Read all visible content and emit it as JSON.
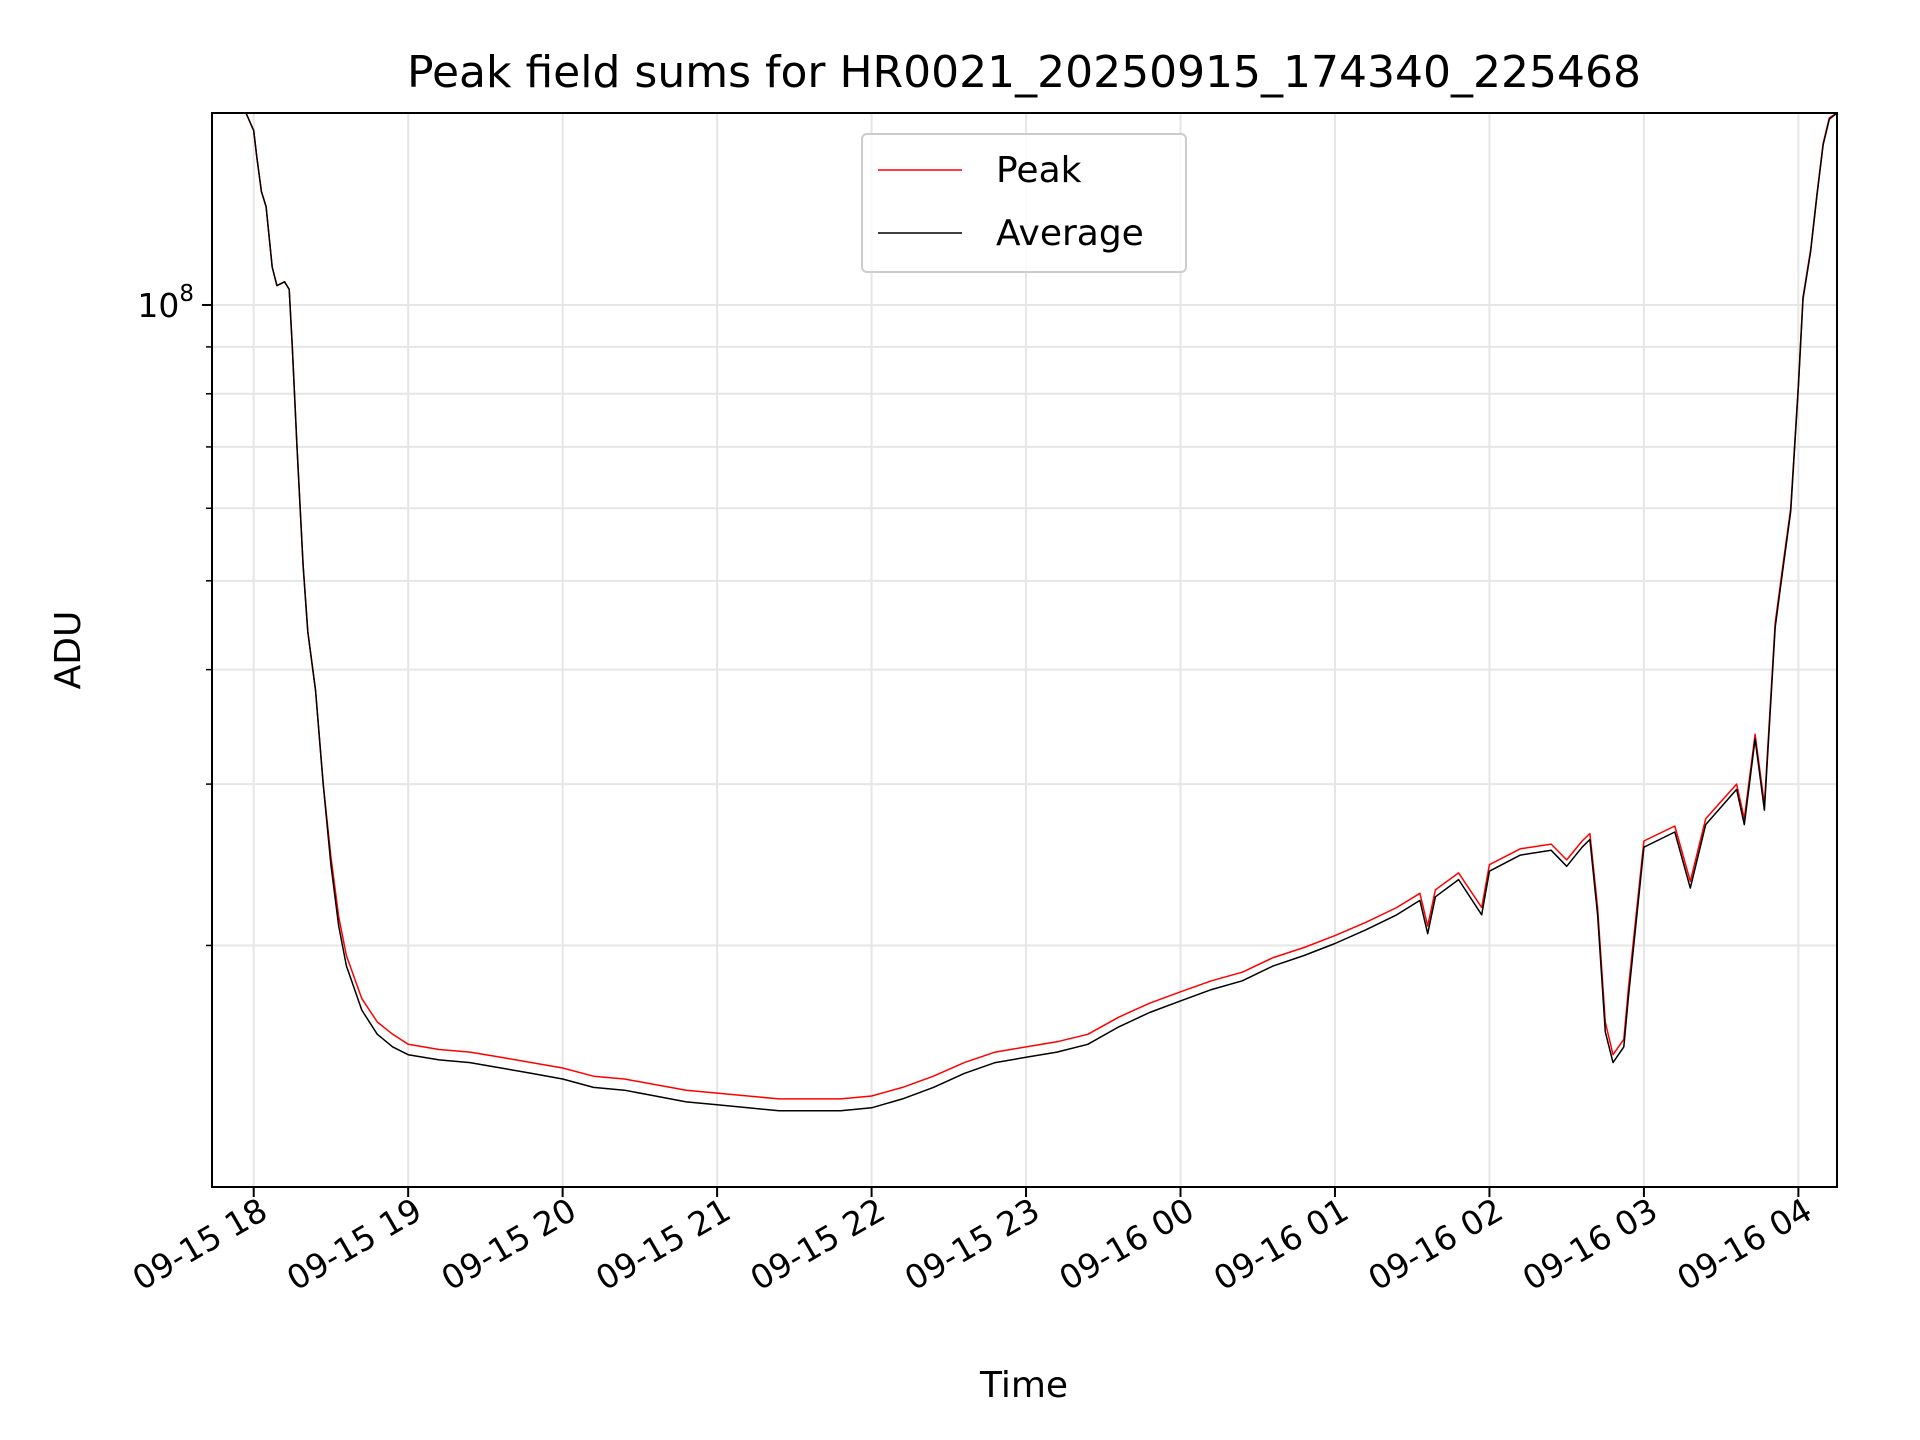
{
  "chart_data": {
    "type": "line",
    "title": "Peak field sums for HR0021_20250915_174340_225468",
    "xlabel": "Time",
    "ylabel": "ADU",
    "yscale": "log",
    "ylim": [
      10900000,
      162000000
    ],
    "xlim_hours": [
      -0.27,
      10.25
    ],
    "x_ticks": [
      {
        "label": "09-15 18",
        "hour": 0
      },
      {
        "label": "09-15 19",
        "hour": 1
      },
      {
        "label": "09-15 20",
        "hour": 2
      },
      {
        "label": "09-15 21",
        "hour": 3
      },
      {
        "label": "09-15 22",
        "hour": 4
      },
      {
        "label": "09-15 23",
        "hour": 5
      },
      {
        "label": "09-16 00",
        "hour": 6
      },
      {
        "label": "09-16 01",
        "hour": 7
      },
      {
        "label": "09-16 02",
        "hour": 8
      },
      {
        "label": "09-16 03",
        "hour": 9
      },
      {
        "label": "09-16 04",
        "hour": 10
      }
    ],
    "y_ticks": [
      {
        "label_base": "10",
        "label_exp": "8",
        "value": 100000000
      }
    ],
    "y_minor_ticks": [
      20000000,
      30000000,
      40000000,
      50000000,
      60000000,
      70000000,
      80000000,
      90000000,
      200000000
    ],
    "grid": true,
    "legend_position": "top-center",
    "series": [
      {
        "name": "Peak",
        "color": "#ff0000",
        "points": [
          [
            -0.27,
            162000000
          ],
          [
            -0.05,
            162000000
          ],
          [
            0.0,
            155000000
          ],
          [
            0.02,
            145000000
          ],
          [
            0.05,
            133000000
          ],
          [
            0.08,
            128000000
          ],
          [
            0.12,
            110000000
          ],
          [
            0.15,
            105000000
          ],
          [
            0.2,
            106000000
          ],
          [
            0.23,
            104000000
          ],
          [
            0.25,
            90000000
          ],
          [
            0.28,
            70000000
          ],
          [
            0.32,
            52000000
          ],
          [
            0.35,
            44000000
          ],
          [
            0.4,
            38000000
          ],
          [
            0.45,
            30000000
          ],
          [
            0.5,
            25000000
          ],
          [
            0.55,
            21500000
          ],
          [
            0.6,
            19500000
          ],
          [
            0.7,
            17500000
          ],
          [
            0.8,
            16500000
          ],
          [
            0.9,
            16000000
          ],
          [
            1.0,
            15600000
          ],
          [
            1.2,
            15400000
          ],
          [
            1.4,
            15300000
          ],
          [
            1.6,
            15100000
          ],
          [
            1.8,
            14900000
          ],
          [
            2.0,
            14700000
          ],
          [
            2.2,
            14400000
          ],
          [
            2.4,
            14300000
          ],
          [
            2.6,
            14100000
          ],
          [
            2.8,
            13900000
          ],
          [
            3.0,
            13800000
          ],
          [
            3.2,
            13700000
          ],
          [
            3.4,
            13600000
          ],
          [
            3.6,
            13600000
          ],
          [
            3.8,
            13600000
          ],
          [
            4.0,
            13700000
          ],
          [
            4.2,
            14000000
          ],
          [
            4.4,
            14400000
          ],
          [
            4.6,
            14900000
          ],
          [
            4.8,
            15300000
          ],
          [
            5.0,
            15500000
          ],
          [
            5.2,
            15700000
          ],
          [
            5.4,
            16000000
          ],
          [
            5.6,
            16700000
          ],
          [
            5.8,
            17300000
          ],
          [
            6.0,
            17800000
          ],
          [
            6.2,
            18300000
          ],
          [
            6.4,
            18700000
          ],
          [
            6.6,
            19400000
          ],
          [
            6.8,
            19900000
          ],
          [
            7.0,
            20500000
          ],
          [
            7.2,
            21200000
          ],
          [
            7.4,
            22000000
          ],
          [
            7.55,
            22800000
          ],
          [
            7.6,
            21000000
          ],
          [
            7.65,
            23000000
          ],
          [
            7.8,
            24000000
          ],
          [
            7.95,
            22000000
          ],
          [
            8.0,
            24500000
          ],
          [
            8.2,
            25500000
          ],
          [
            8.4,
            25800000
          ],
          [
            8.5,
            24800000
          ],
          [
            8.6,
            26000000
          ],
          [
            8.65,
            26500000
          ],
          [
            8.7,
            22000000
          ],
          [
            8.75,
            16500000
          ],
          [
            8.8,
            15200000
          ],
          [
            8.87,
            15800000
          ],
          [
            8.9,
            18000000
          ],
          [
            9.0,
            26000000
          ],
          [
            9.2,
            27000000
          ],
          [
            9.3,
            23500000
          ],
          [
            9.4,
            27500000
          ],
          [
            9.6,
            30000000
          ],
          [
            9.65,
            27500000
          ],
          [
            9.72,
            34000000
          ],
          [
            9.78,
            28500000
          ],
          [
            9.85,
            45000000
          ],
          [
            9.9,
            52000000
          ],
          [
            9.95,
            60000000
          ],
          [
            10.0,
            82000000
          ],
          [
            10.03,
            102000000
          ],
          [
            10.08,
            115000000
          ],
          [
            10.12,
            132000000
          ],
          [
            10.16,
            150000000
          ],
          [
            10.2,
            160000000
          ],
          [
            10.25,
            162000000
          ]
        ]
      },
      {
        "name": "Average",
        "color": "#000000",
        "points": [
          [
            -0.27,
            162000000
          ],
          [
            -0.05,
            162000000
          ],
          [
            0.0,
            155000000
          ],
          [
            0.02,
            145000000
          ],
          [
            0.05,
            133000000
          ],
          [
            0.08,
            128000000
          ],
          [
            0.12,
            110000000
          ],
          [
            0.15,
            105000000
          ],
          [
            0.2,
            106000000
          ],
          [
            0.23,
            104000000
          ],
          [
            0.25,
            90000000
          ],
          [
            0.28,
            70000000
          ],
          [
            0.32,
            52000000
          ],
          [
            0.35,
            44000000
          ],
          [
            0.4,
            38000000
          ],
          [
            0.45,
            30000000
          ],
          [
            0.5,
            24500000
          ],
          [
            0.55,
            21000000
          ],
          [
            0.6,
            19000000
          ],
          [
            0.7,
            17000000
          ],
          [
            0.8,
            16000000
          ],
          [
            0.9,
            15500000
          ],
          [
            1.0,
            15200000
          ],
          [
            1.2,
            15000000
          ],
          [
            1.4,
            14900000
          ],
          [
            1.6,
            14700000
          ],
          [
            1.8,
            14500000
          ],
          [
            2.0,
            14300000
          ],
          [
            2.2,
            14000000
          ],
          [
            2.4,
            13900000
          ],
          [
            2.6,
            13700000
          ],
          [
            2.8,
            13500000
          ],
          [
            3.0,
            13400000
          ],
          [
            3.2,
            13300000
          ],
          [
            3.4,
            13200000
          ],
          [
            3.6,
            13200000
          ],
          [
            3.8,
            13200000
          ],
          [
            4.0,
            13300000
          ],
          [
            4.2,
            13600000
          ],
          [
            4.4,
            14000000
          ],
          [
            4.6,
            14500000
          ],
          [
            4.8,
            14900000
          ],
          [
            5.0,
            15100000
          ],
          [
            5.2,
            15300000
          ],
          [
            5.4,
            15600000
          ],
          [
            5.6,
            16300000
          ],
          [
            5.8,
            16900000
          ],
          [
            6.0,
            17400000
          ],
          [
            6.2,
            17900000
          ],
          [
            6.4,
            18300000
          ],
          [
            6.6,
            19000000
          ],
          [
            6.8,
            19500000
          ],
          [
            7.0,
            20100000
          ],
          [
            7.2,
            20800000
          ],
          [
            7.4,
            21600000
          ],
          [
            7.55,
            22400000
          ],
          [
            7.6,
            20600000
          ],
          [
            7.65,
            22600000
          ],
          [
            7.8,
            23600000
          ],
          [
            7.95,
            21600000
          ],
          [
            8.0,
            24100000
          ],
          [
            8.2,
            25100000
          ],
          [
            8.4,
            25400000
          ],
          [
            8.5,
            24400000
          ],
          [
            8.6,
            25600000
          ],
          [
            8.65,
            26100000
          ],
          [
            8.7,
            21600000
          ],
          [
            8.75,
            16100000
          ],
          [
            8.8,
            14900000
          ],
          [
            8.87,
            15500000
          ],
          [
            8.9,
            17600000
          ],
          [
            9.0,
            25600000
          ],
          [
            9.2,
            26600000
          ],
          [
            9.3,
            23100000
          ],
          [
            9.4,
            27100000
          ],
          [
            9.6,
            29600000
          ],
          [
            9.65,
            27100000
          ],
          [
            9.72,
            33600000
          ],
          [
            9.78,
            28100000
          ],
          [
            9.85,
            44500000
          ],
          [
            9.9,
            51500000
          ],
          [
            9.95,
            59500000
          ],
          [
            10.0,
            81500000
          ],
          [
            10.03,
            101500000
          ],
          [
            10.08,
            114500000
          ],
          [
            10.12,
            131500000
          ],
          [
            10.16,
            149500000
          ],
          [
            10.2,
            159500000
          ],
          [
            10.25,
            162000000
          ]
        ]
      }
    ]
  }
}
